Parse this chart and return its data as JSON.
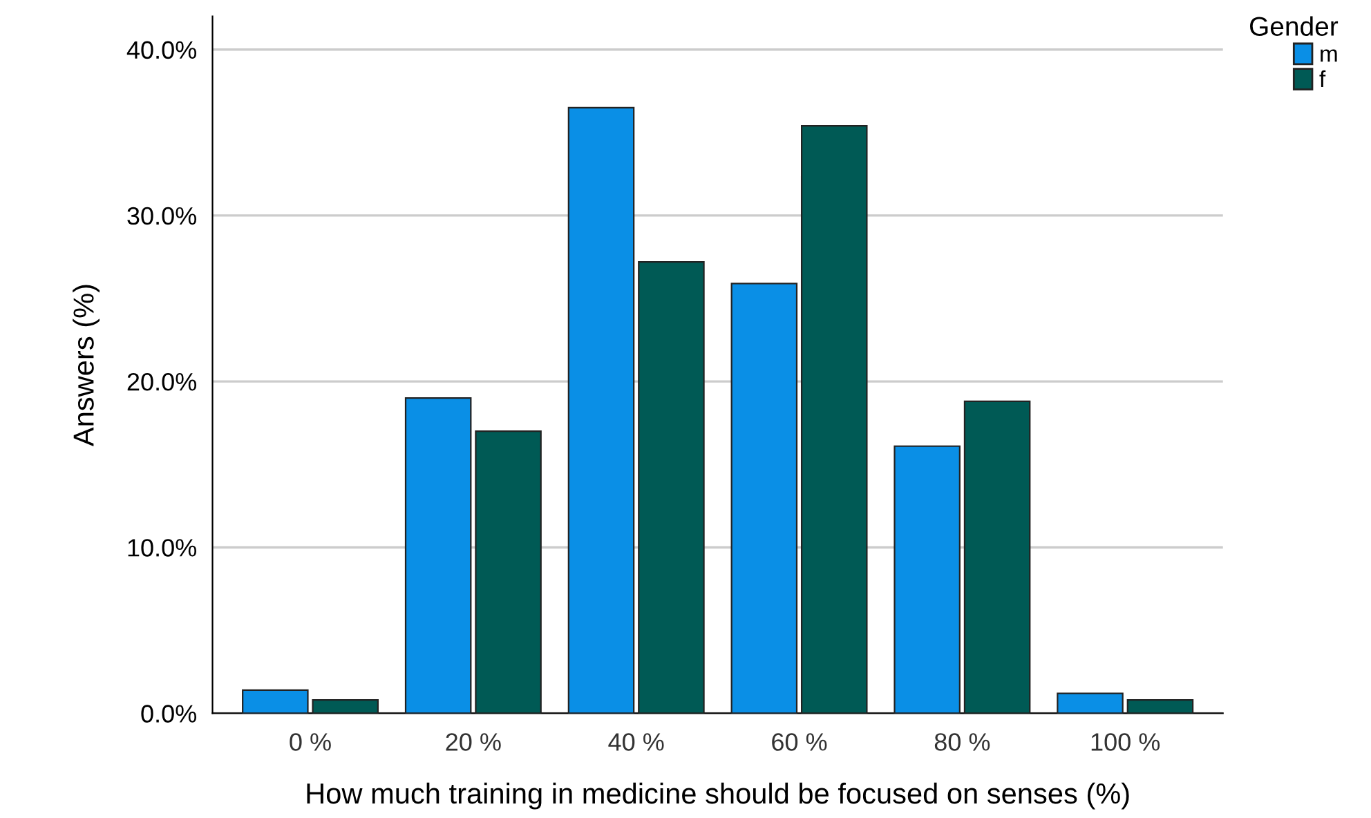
{
  "chart_data": {
    "type": "bar",
    "xlabel": "How much training in medicine should be focused on senses (%)",
    "ylabel": "Answers (%)",
    "legend_title": "Gender",
    "categories": [
      "0 %",
      "20 %",
      "40 %",
      "60 %",
      "80 %",
      "100 %"
    ],
    "series": [
      {
        "name": "m",
        "color": "#0a8fe6",
        "values": [
          1.4,
          19.0,
          36.5,
          25.9,
          16.1,
          1.2
        ]
      },
      {
        "name": "f",
        "color": "#005a55",
        "values": [
          0.8,
          17.0,
          27.2,
          35.4,
          18.8,
          0.8
        ]
      }
    ],
    "ylim": [
      0,
      42
    ],
    "yticks": [
      {
        "value": 0,
        "label": "0.0%"
      },
      {
        "value": 10,
        "label": "10.0%"
      },
      {
        "value": 20,
        "label": "20.0%"
      },
      {
        "value": 30,
        "label": "30.0%"
      },
      {
        "value": 40,
        "label": "40.0%"
      }
    ],
    "grid": "y",
    "legend": "top right"
  }
}
